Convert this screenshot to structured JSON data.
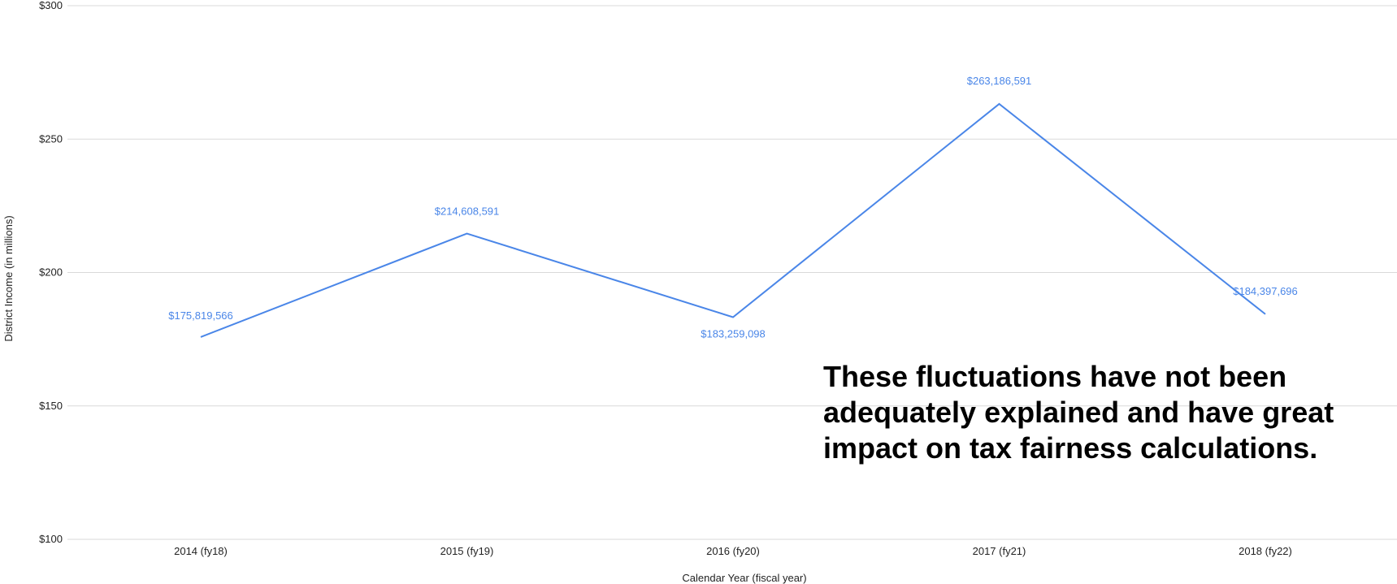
{
  "chart_data": {
    "type": "line",
    "categories": [
      "2014 (fy18)",
      "2015 (fy19)",
      "2016 (fy20)",
      "2017 (fy21)",
      "2018 (fy22)"
    ],
    "series": [
      {
        "values": [
          175.819566,
          214.608591,
          183.259098,
          263.186591,
          184.397696
        ],
        "data_labels": [
          "$175,819,566",
          "$214,608,591",
          "$183,259,098",
          "$263,186,591",
          "$184,397,696"
        ]
      }
    ],
    "xlabel": "Calendar Year (fiscal year)",
    "ylabel": "District Income (in millions)",
    "ylim": [
      100,
      300
    ],
    "yticks": [
      100,
      150,
      200,
      250,
      300
    ],
    "ytick_labels": [
      "$100",
      "$150",
      "$200",
      "$250",
      "$300"
    ],
    "grid": true,
    "legend": "none",
    "line_color": "#4a86e8",
    "label_color": "#4a86e8",
    "grid_color": "#d9d9d9"
  },
  "annotation": {
    "lines": [
      "These fluctuations have not been",
      "adequately explained and have great",
      "impact on tax fairness calculations."
    ]
  }
}
